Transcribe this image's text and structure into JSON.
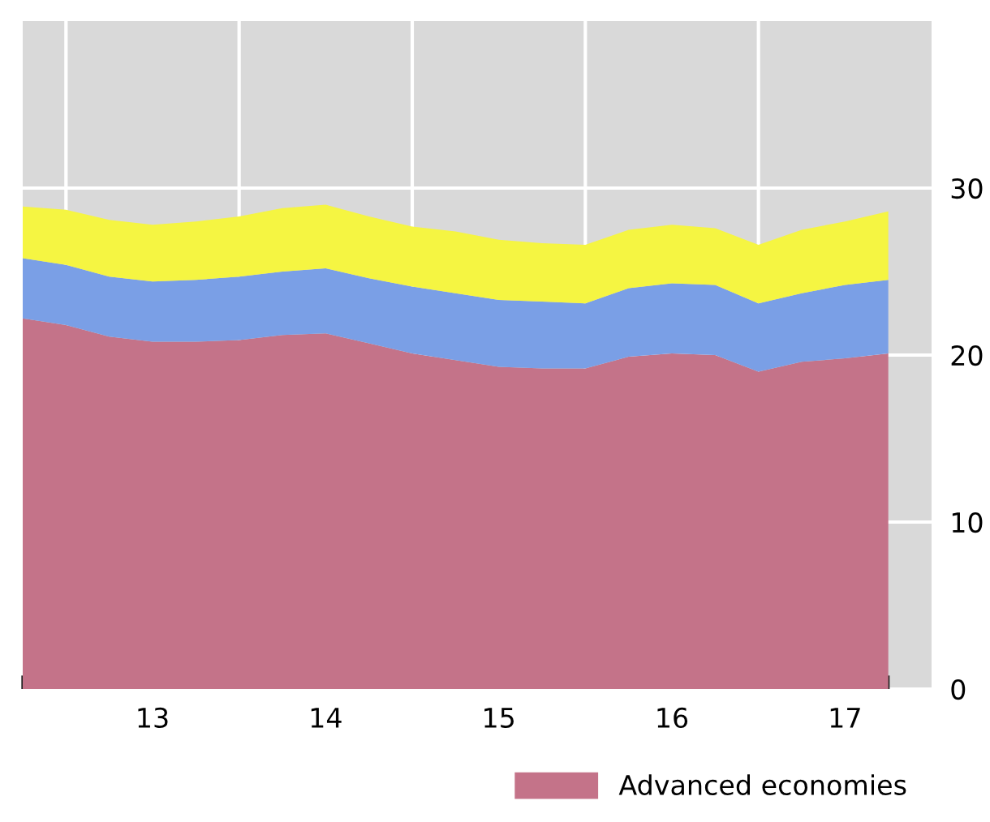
{
  "chart_data": {
    "type": "area",
    "stacked": true,
    "categories": [
      null,
      null,
      null,
      "13",
      null,
      null,
      null,
      "14",
      null,
      null,
      null,
      "15",
      null,
      null,
      null,
      "16",
      null,
      null,
      null,
      "17",
      null
    ],
    "series": [
      {
        "name": "Advanced economies",
        "color": "#c47389",
        "values": [
          22.2,
          21.8,
          21.1,
          20.8,
          20.8,
          20.9,
          21.2,
          21.3,
          20.7,
          20.1,
          19.7,
          19.3,
          19.2,
          19.2,
          19.9,
          20.1,
          20.0,
          19.0,
          19.6,
          19.8,
          20.1
        ]
      },
      {
        "color": "#7a9fe6",
        "values": [
          3.6,
          3.6,
          3.6,
          3.6,
          3.7,
          3.8,
          3.8,
          3.9,
          3.9,
          4.0,
          4.0,
          4.0,
          4.0,
          3.9,
          4.1,
          4.2,
          4.2,
          4.1,
          4.1,
          4.4,
          4.4
        ]
      },
      {
        "color": "#f5f542",
        "values": [
          3.1,
          3.3,
          3.4,
          3.4,
          3.5,
          3.6,
          3.8,
          3.8,
          3.7,
          3.6,
          3.7,
          3.6,
          3.5,
          3.5,
          3.5,
          3.5,
          3.4,
          3.5,
          3.8,
          3.8,
          4.1
        ]
      }
    ],
    "ylim": [
      0,
      40
    ],
    "yticks": [
      0,
      10,
      20,
      30
    ],
    "grid": true,
    "legend": "bottom"
  }
}
